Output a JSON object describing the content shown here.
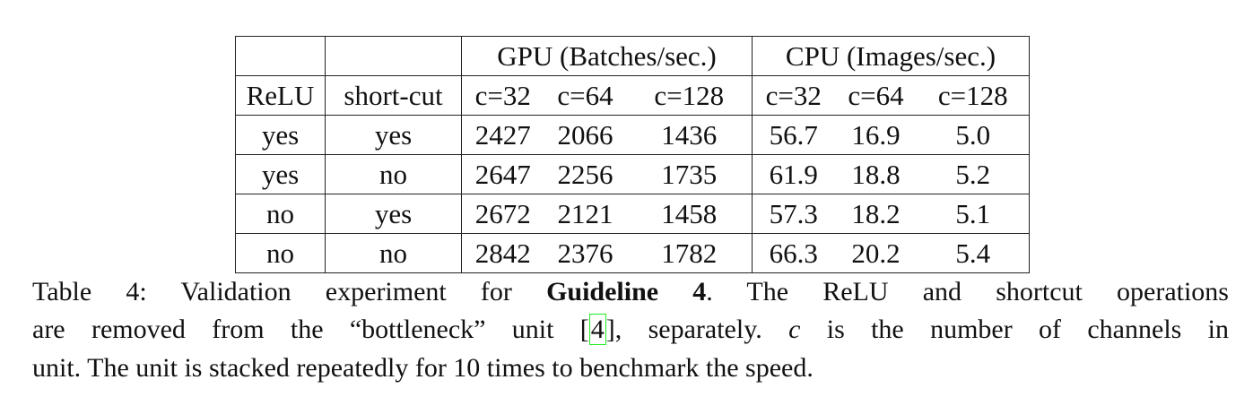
{
  "table": {
    "group_headers": [
      "GPU (Batches/sec.)",
      "CPU (Images/sec.)"
    ],
    "column_headers": [
      "ReLU",
      "short-cut",
      "c=32",
      "c=64",
      "c=128",
      "c=32",
      "c=64",
      "c=128"
    ],
    "rows": [
      [
        "yes",
        "yes",
        "2427",
        "2066",
        "1436",
        "56.7",
        "16.9",
        "5.0"
      ],
      [
        "yes",
        "no",
        "2647",
        "2256",
        "1735",
        "61.9",
        "18.8",
        "5.2"
      ],
      [
        "no",
        "yes",
        "2672",
        "2121",
        "1458",
        "57.3",
        "18.2",
        "5.1"
      ],
      [
        "no",
        "no",
        "2842",
        "2376",
        "1782",
        "66.3",
        "20.2",
        "5.4"
      ]
    ]
  },
  "caption": {
    "lines": [
      [
        "Table 4: Validation experiment for ",
        "Guideline 4",
        ". The ReLU and shortcut operations"
      ],
      [
        "are removed from the “bottleneck” unit [",
        "4",
        "], separately. ",
        "c",
        " is the number of channels in"
      ],
      [
        "unit. The unit is stacked repeatedly for 10 times to benchmark the speed."
      ]
    ]
  }
}
